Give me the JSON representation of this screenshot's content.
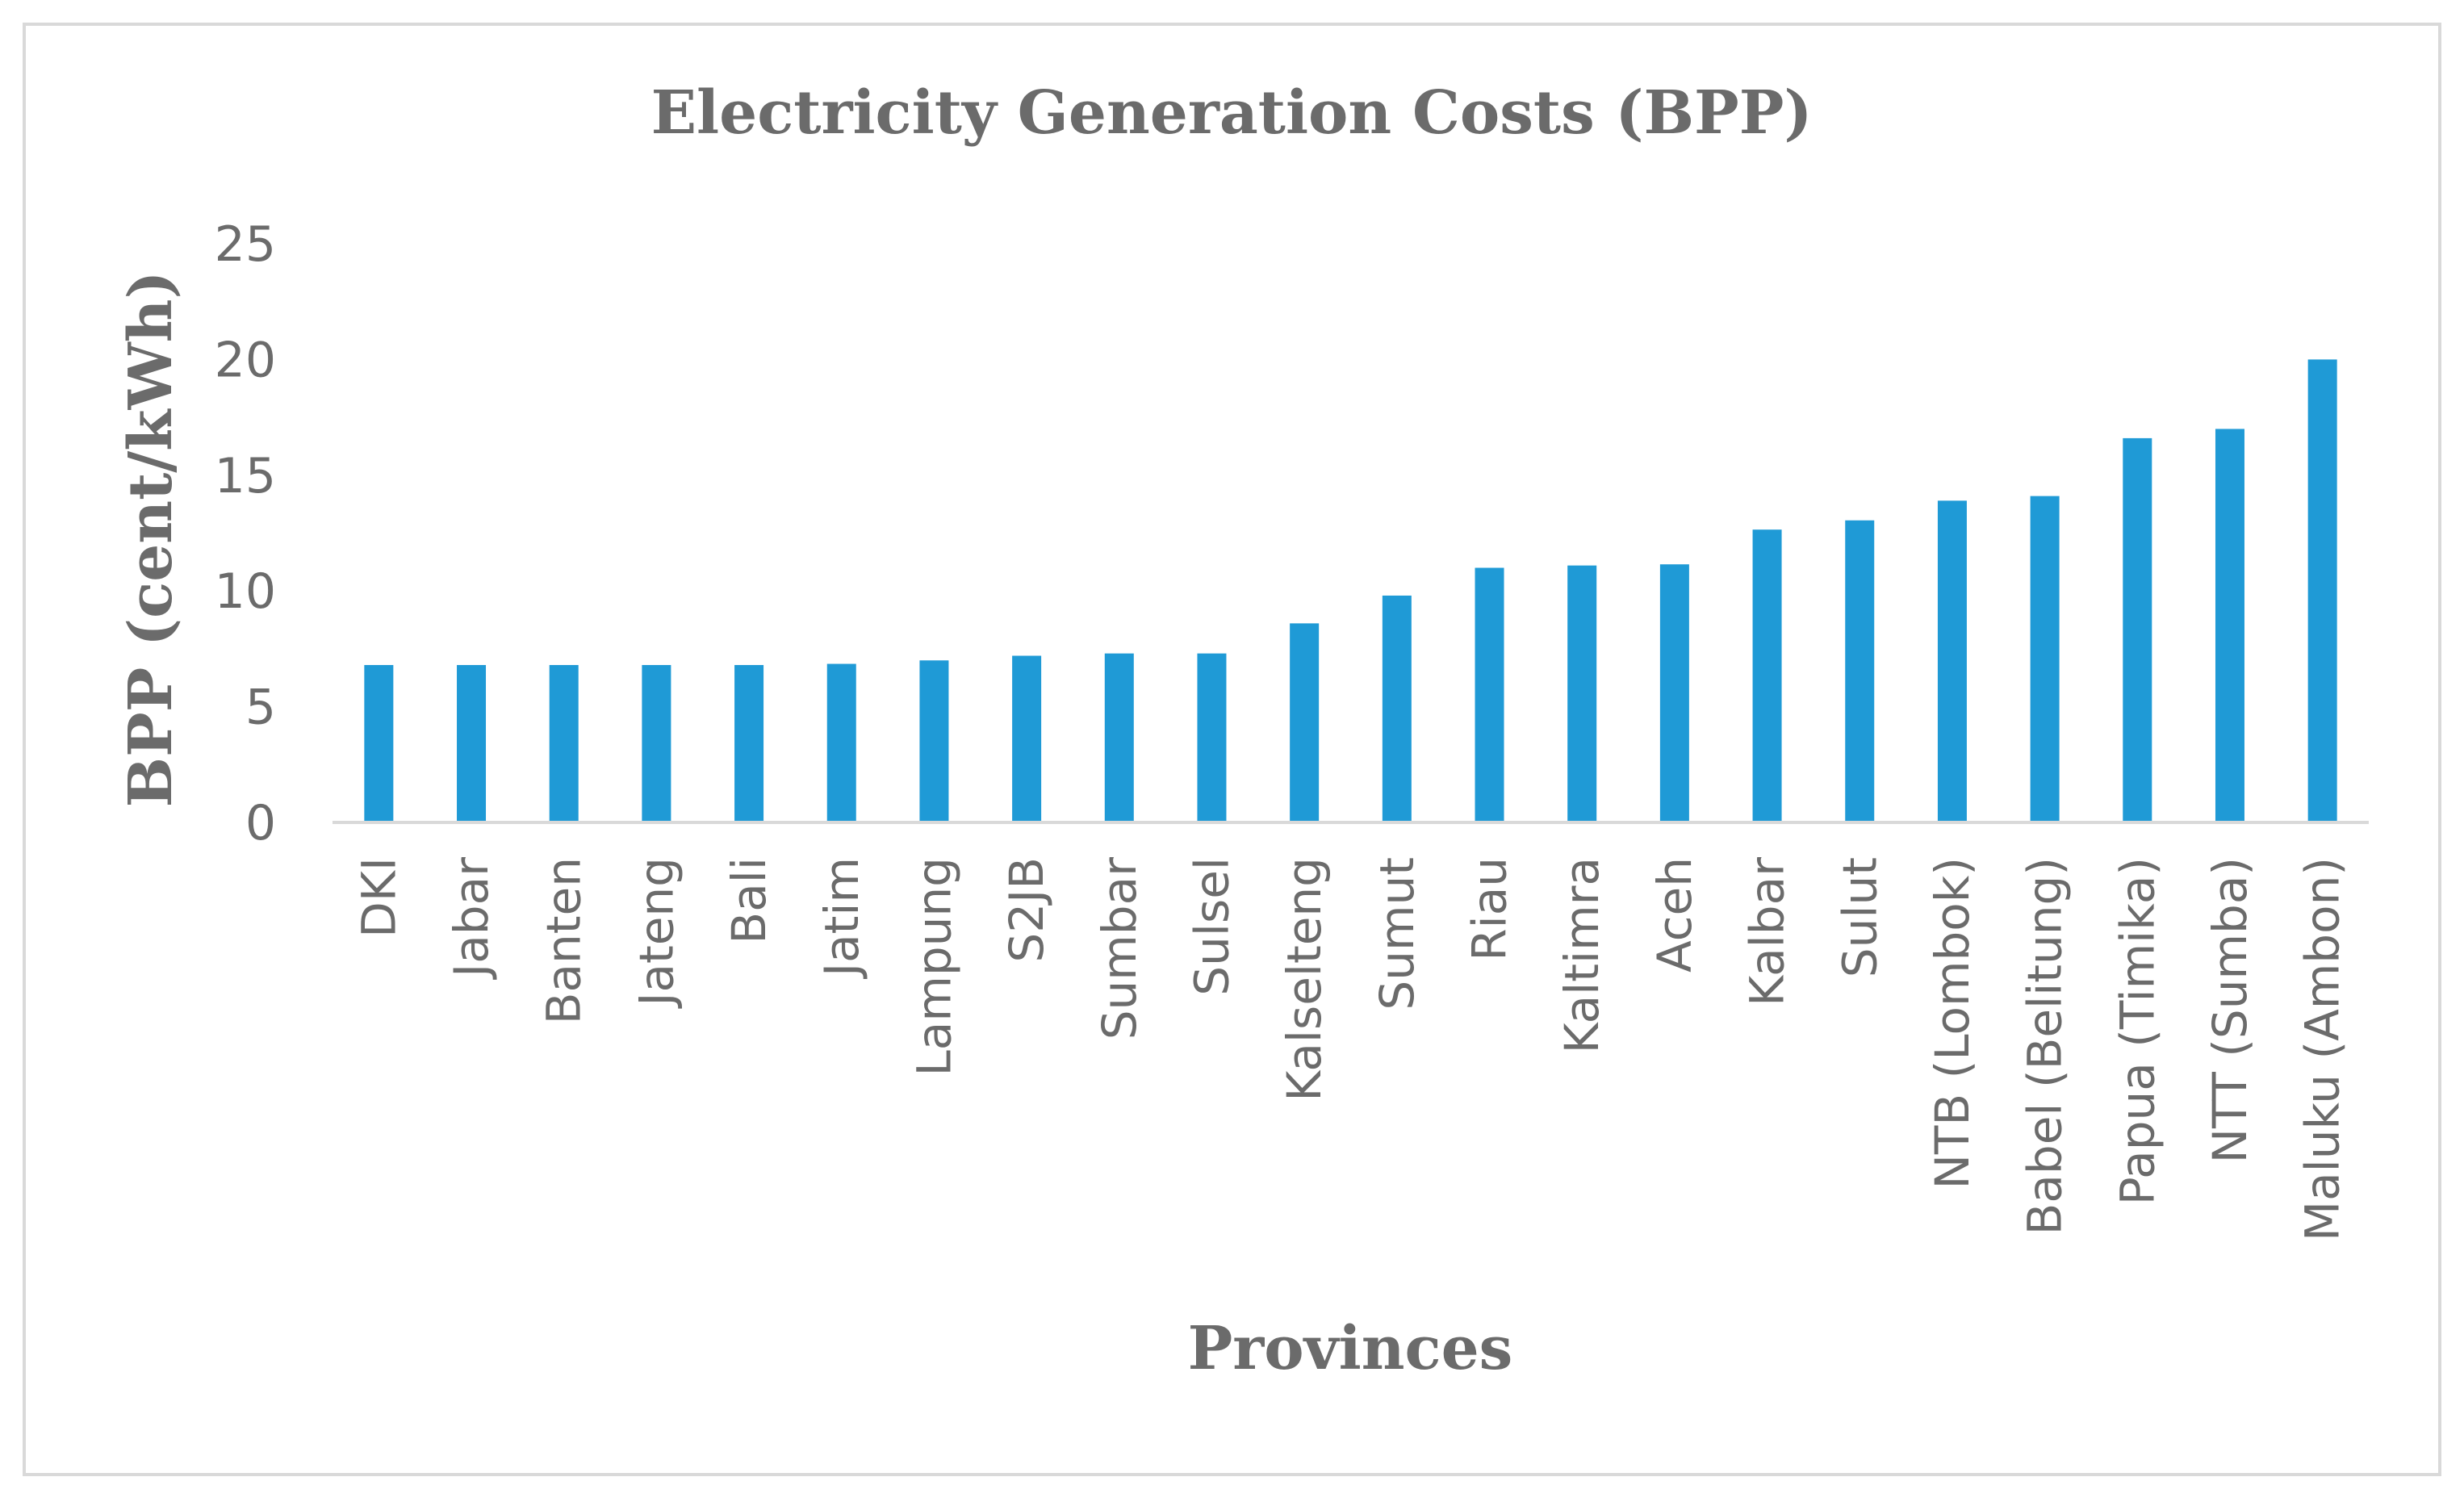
{
  "chart_data": {
    "type": "bar",
    "title": "Electricity Generation Costs (BPP)",
    "xlabel": "Provinces",
    "ylabel": "BPP (cent/kWh)",
    "ylim": [
      0,
      25
    ],
    "yticks": [
      "0",
      "5",
      "10",
      "15",
      "20",
      "25"
    ],
    "grid": false,
    "legend": "none",
    "bar_color": "#1f9ad6",
    "categories": [
      "DKI",
      "Jabar",
      "Banten",
      "Jateng",
      "Bali",
      "Jatim",
      "Lampung",
      "S2JB",
      "Sumbar",
      "Sulsel",
      "Kalselteng",
      "Sumut",
      "Riau",
      "Kaltimra",
      "Aceh",
      "Kalbar",
      "Sulut",
      "NTB (Lombok)",
      "Babel (Belitung)",
      "Papua (Timika)",
      "NTT (Sumba)",
      "Maluku (Ambon)"
    ],
    "values": [
      6.8,
      6.8,
      6.8,
      6.8,
      6.8,
      6.85,
      7.0,
      7.2,
      7.3,
      7.3,
      8.6,
      9.8,
      11.0,
      11.1,
      11.15,
      12.65,
      13.05,
      13.9,
      14.1,
      16.6,
      17.0,
      20.0
    ]
  }
}
